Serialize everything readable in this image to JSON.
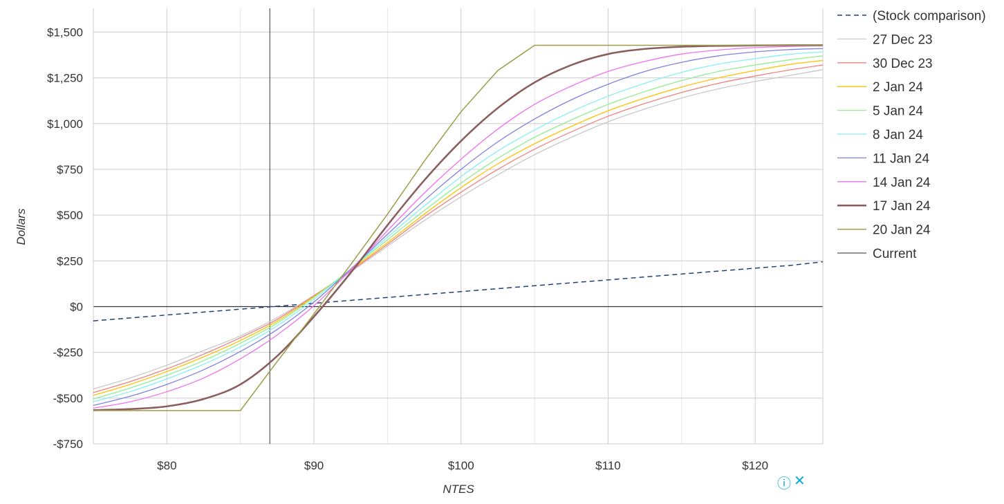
{
  "chart_data": {
    "type": "line",
    "xlabel": "NTES",
    "ylabel": "Dollars",
    "xlim": [
      75,
      124.6
    ],
    "ylim": [
      -750,
      1630
    ],
    "x_ticks": [
      80,
      90,
      100,
      110,
      120
    ],
    "x_tick_labels": [
      "$80",
      "$90",
      "$100",
      "$110",
      "$120"
    ],
    "y_ticks": [
      1500,
      1250,
      1000,
      750,
      500,
      250,
      0,
      -250,
      -500,
      -750
    ],
    "y_tick_labels": [
      "$1,500",
      "$1,250",
      "$1,000",
      "$750",
      "$500",
      "$250",
      "$0",
      "-$250",
      "-$500",
      "-$750"
    ],
    "grid": true,
    "legend_position": "right",
    "current_price": 87,
    "x": [
      75,
      77.5,
      80,
      82.5,
      85,
      87.5,
      90,
      92.5,
      95,
      97.5,
      100,
      102.5,
      105,
      107.5,
      110,
      112.5,
      115,
      117.5,
      120,
      122.5,
      124.6
    ],
    "series": [
      {
        "name": "(Stock comparison)",
        "color": "#1f3f77",
        "dashed": true,
        "width": 1.5,
        "values": [
          -78,
          -62,
          -46,
          -30,
          -14,
          2,
          18,
          34,
          50,
          66,
          82,
          98,
          114,
          130,
          146,
          162,
          178,
          194,
          210,
          226,
          245
        ]
      },
      {
        "name": "27 Dec 23",
        "color": "#c8c8c8",
        "width": 1.3,
        "values": [
          -450,
          -390,
          -320,
          -240,
          -160,
          -60,
          60,
          190,
          330,
          470,
          600,
          720,
          830,
          925,
          1010,
          1080,
          1140,
          1190,
          1230,
          1265,
          1295
        ]
      },
      {
        "name": "30 Dec 23",
        "color": "#f08080",
        "width": 1.3,
        "values": [
          -470,
          -410,
          -340,
          -260,
          -170,
          -70,
          60,
          195,
          340,
          490,
          625,
          750,
          860,
          955,
          1040,
          1110,
          1170,
          1220,
          1260,
          1295,
          1320
        ]
      },
      {
        "name": "2 Jan 24",
        "color": "#ffc000",
        "width": 1.3,
        "values": [
          -485,
          -425,
          -355,
          -275,
          -185,
          -80,
          55,
          200,
          350,
          505,
          650,
          780,
          890,
          985,
          1070,
          1140,
          1200,
          1250,
          1290,
          1325,
          1345
        ]
      },
      {
        "name": "5 Jan 24",
        "color": "#90ee90",
        "width": 1.3,
        "values": [
          -505,
          -445,
          -375,
          -295,
          -200,
          -90,
          50,
          205,
          365,
          525,
          675,
          810,
          925,
          1020,
          1105,
          1175,
          1235,
          1285,
          1320,
          1350,
          1370
        ]
      },
      {
        "name": "8 Jan 24",
        "color": "#87eff5",
        "width": 1.3,
        "values": [
          -520,
          -465,
          -395,
          -315,
          -220,
          -105,
          40,
          205,
          380,
          550,
          710,
          850,
          965,
          1065,
          1150,
          1220,
          1280,
          1325,
          1355,
          1380,
          1392
        ]
      },
      {
        "name": "11 Jan 24",
        "color": "#8080e0",
        "width": 1.3,
        "values": [
          -540,
          -490,
          -425,
          -345,
          -245,
          -125,
          25,
          205,
          395,
          580,
          750,
          900,
          1025,
          1130,
          1215,
          1285,
          1335,
          1370,
          1392,
          1405,
          1410
        ]
      },
      {
        "name": "14 Jan 24",
        "color": "#f070f0",
        "width": 1.3,
        "values": [
          -555,
          -520,
          -465,
          -390,
          -285,
          -155,
          5,
          200,
          415,
          620,
          805,
          970,
          1105,
          1205,
          1285,
          1340,
          1380,
          1402,
          1415,
          1422,
          1425
        ]
      },
      {
        "name": "17 Jan 24",
        "color": "#8b5e5e",
        "width": 2.6,
        "values": [
          -566,
          -560,
          -545,
          -505,
          -425,
          -270,
          -55,
          185,
          445,
          690,
          905,
          1085,
          1225,
          1320,
          1380,
          1408,
          1420,
          1425,
          1427,
          1428,
          1428
        ]
      },
      {
        "name": "20 Jan 24",
        "color": "#9c9c48",
        "width": 1.5,
        "values": [
          -568,
          -568,
          -568,
          -568,
          -568,
          -300,
          -40,
          230,
          505,
          795,
          1065,
          1290,
          1428,
          1428,
          1428,
          1428,
          1428,
          1428,
          1428,
          1428,
          1428
        ]
      }
    ],
    "legend_extra": {
      "name": "Current",
      "color": "#555555"
    }
  },
  "ad": {
    "info_icon": "ⓘ",
    "close_icon": "✕"
  }
}
